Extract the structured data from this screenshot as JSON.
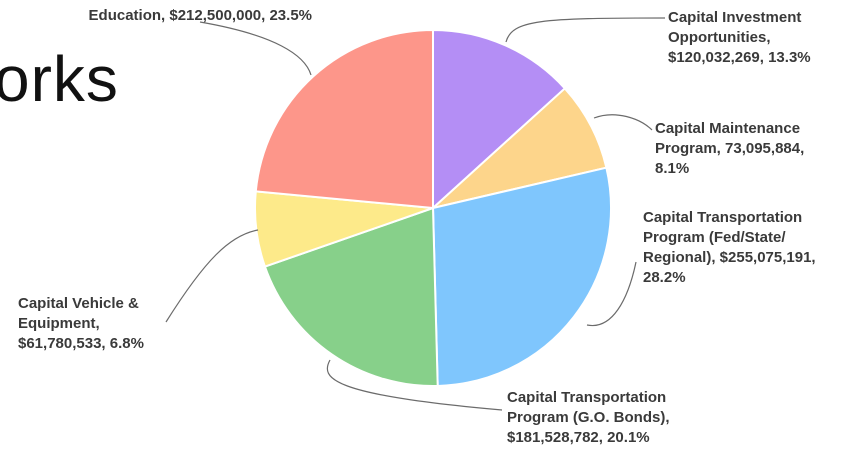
{
  "title_fragment": "orks",
  "chart_data": {
    "type": "pie",
    "title": "",
    "slices": [
      {
        "label": "Capital Investment Opportunities",
        "value": 120032269,
        "percent": 13.3,
        "color": "#b48ef5",
        "label_lines": [
          "Capital Investment",
          "Opportunities,",
          "$120,032,269, 13.3%"
        ]
      },
      {
        "label": "Capital Maintenance Program",
        "value": 73095884,
        "percent": 8.1,
        "color": "#fdd58b",
        "label_lines": [
          "Capital Maintenance",
          "Program, 73,095,884,",
          "8.1%"
        ]
      },
      {
        "label": "Capital Transportation Program (Fed/State/Regional)",
        "value": 255075191,
        "percent": 28.2,
        "color": "#7fc6fd",
        "label_lines": [
          "Capital Transportation",
          "Program (Fed/State/",
          "Regional), $255,075,191,",
          "28.2%"
        ]
      },
      {
        "label": "Capital Transportation Program (G.O. Bonds)",
        "value": 181528782,
        "percent": 20.1,
        "color": "#87d08a",
        "label_lines": [
          "Capital Transportation",
          "Program (G.O. Bonds),",
          "$181,528,782, 20.1%"
        ]
      },
      {
        "label": "Capital Vehicle & Equipment",
        "value": 61780533,
        "percent": 6.8,
        "color": "#fdea8a",
        "label_lines": [
          "Capital Vehicle &",
          "Equipment,",
          "$61,780,533, 6.8%"
        ]
      },
      {
        "label": "Education",
        "value": 212500000,
        "percent": 23.5,
        "color": "#fd968a",
        "label_lines": [
          "Education, $212,500,000, 23.5%"
        ]
      }
    ]
  }
}
